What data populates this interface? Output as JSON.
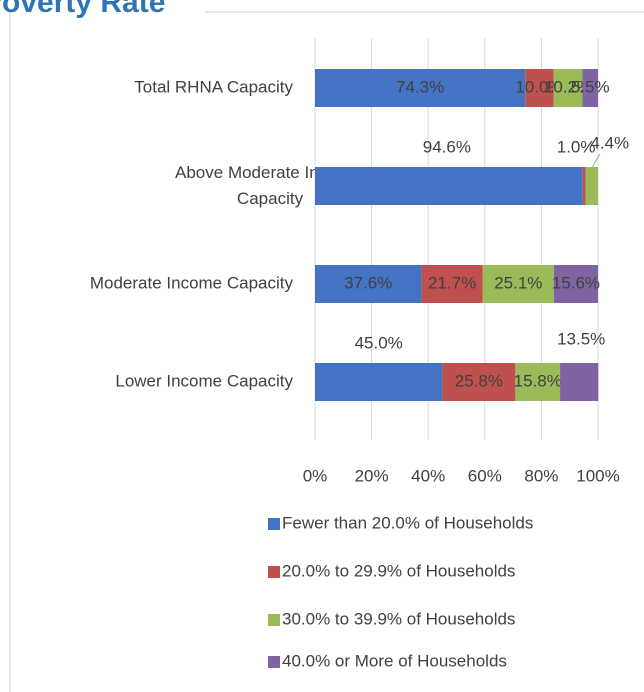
{
  "chart_data": {
    "type": "stacked_bar_horizontal",
    "title": "Poverty Rate",
    "categories": [
      "Total RHNA Capacity",
      "Above Moderate Income Capacity",
      "Moderate Income Capacity",
      "Lower Income Capacity"
    ],
    "series": [
      {
        "name": "Fewer than 20.0% of Households",
        "color": "#4472c4",
        "values": [
          74.3,
          94.6,
          37.6,
          45.0
        ],
        "value_labels": [
          "74.3%",
          "94.6%",
          "37.6%",
          "45.0%"
        ]
      },
      {
        "name": "20.0% to 29.9% of Households",
        "color": "#c0504d",
        "values": [
          10.0,
          1.0,
          21.7,
          25.8
        ],
        "value_labels": [
          "10.0%",
          "1.0%",
          "21.7%",
          "25.8%"
        ]
      },
      {
        "name": "30.0% to 39.9% of Households",
        "color": "#9bbb59",
        "values": [
          10.2,
          4.4,
          25.1,
          15.8
        ],
        "value_labels": [
          "10.2%",
          "4.4%",
          "25.1%",
          "15.8%"
        ]
      },
      {
        "name": "40.0% or More of Households",
        "color": "#8064a2",
        "values": [
          5.5,
          0,
          15.6,
          13.5
        ],
        "value_labels": [
          "5.5%",
          null,
          "15.6%",
          "13.5%"
        ]
      }
    ],
    "xlim": [
      0,
      100
    ],
    "xticks": [
      {
        "value": 0,
        "label": "0%"
      },
      {
        "value": 20,
        "label": "20%"
      },
      {
        "value": 40,
        "label": "40%"
      },
      {
        "value": 60,
        "label": "60%"
      },
      {
        "value": 80,
        "label": "80%"
      },
      {
        "value": 100,
        "label": "100%"
      }
    ],
    "grid": true,
    "legend": "bottom"
  }
}
